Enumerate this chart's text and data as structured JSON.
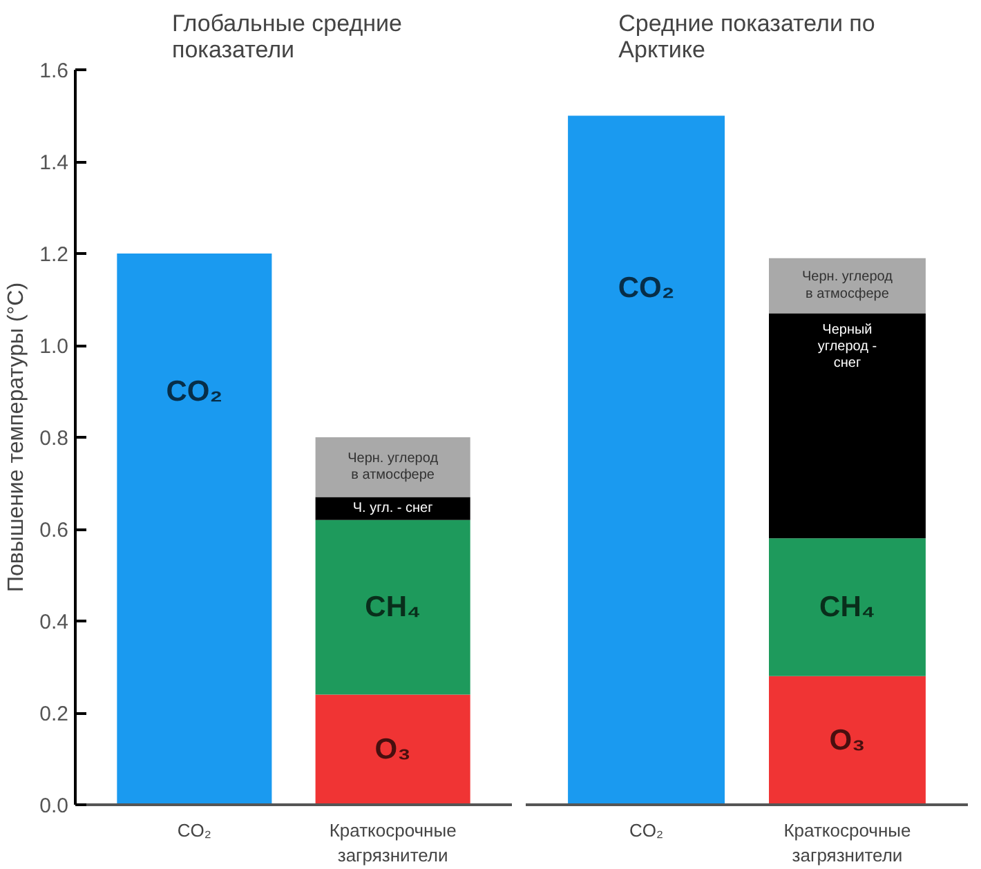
{
  "chart_data": [
    {
      "type": "bar",
      "title": "Глобальные средние показатели",
      "ylabel": "Повышение температуры (°C)",
      "stacked": true,
      "grid": false,
      "legend": false,
      "categories": [
        "CO₂",
        "Краткосрочные загрязнители"
      ],
      "ylim": [
        0,
        1.6
      ],
      "yticks": [
        {
          "value": 0,
          "label": "0.0"
        },
        {
          "value": 0.2,
          "label": "0.2"
        },
        {
          "value": 0.4,
          "label": "0.4"
        },
        {
          "value": 0.6,
          "label": "0.6"
        },
        {
          "value": 0.8,
          "label": "0.8"
        },
        {
          "value": 1.0,
          "label": "1.0"
        },
        {
          "value": 1.2,
          "label": "1.2"
        },
        {
          "value": 1.4,
          "label": "1.4"
        },
        {
          "value": 1.6,
          "label": "1.6"
        }
      ],
      "series": [
        {
          "name": "CO₂",
          "color": "#1a9af0",
          "values": [
            1.2,
            null
          ]
        },
        {
          "name": "O₃",
          "color": "#f03434",
          "values": [
            null,
            0.24
          ]
        },
        {
          "name": "CH₄",
          "color": "#1e9a5c",
          "values": [
            null,
            0.38
          ]
        },
        {
          "name": "Ч. угл. - снег",
          "color": "#000000",
          "values": [
            null,
            0.05
          ]
        },
        {
          "name": "Черн. углерод в атмосфере",
          "color": "#a9a9a9",
          "values": [
            null,
            0.13
          ]
        }
      ]
    },
    {
      "type": "bar",
      "title": "Средние показатели по Арктике",
      "stacked": true,
      "grid": false,
      "legend": false,
      "tick_labels": "x",
      "categories": [
        "CO₂",
        "Краткосрочные загрязнители"
      ],
      "ylim": [
        0,
        1.6
      ],
      "series": [
        {
          "name": "CO₂",
          "color": "#1a9af0",
          "values": [
            1.5,
            null
          ]
        },
        {
          "name": "O₃",
          "color": "#f03434",
          "values": [
            null,
            0.28
          ]
        },
        {
          "name": "CH₄",
          "color": "#1e9a5c",
          "values": [
            null,
            0.3
          ]
        },
        {
          "name": "Черный углерод - снег",
          "color": "#000000",
          "values": [
            null,
            0.49
          ]
        },
        {
          "name": "Черн. углерод в атмосфере",
          "color": "#a9a9a9",
          "values": [
            null,
            0.12
          ]
        }
      ]
    }
  ]
}
